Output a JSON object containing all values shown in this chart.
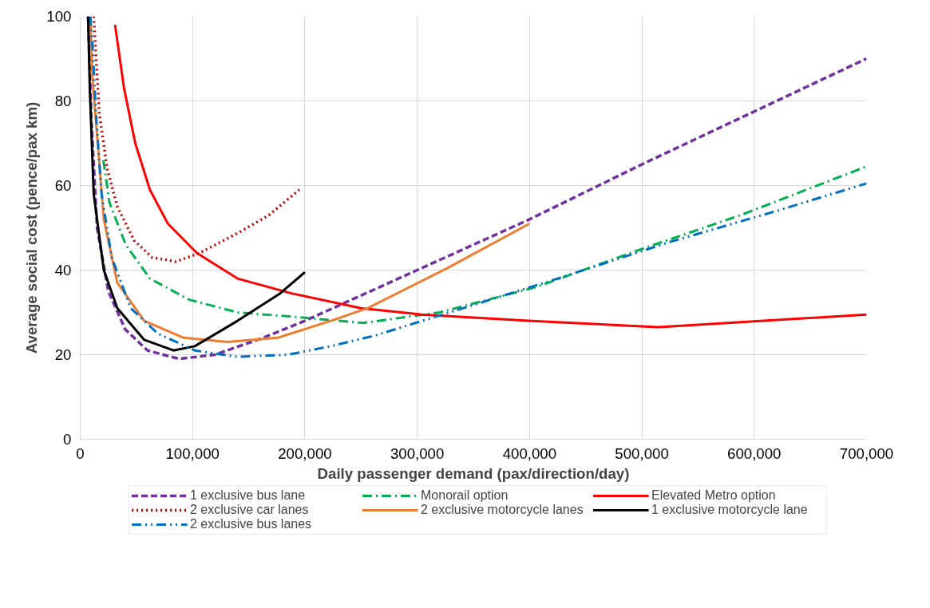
{
  "chart_data": {
    "type": "line",
    "xlabel": "Daily passenger demand (pax/direction/day)",
    "ylabel": "Average social cost (pence/pax km)",
    "xlim": [
      0,
      700000
    ],
    "ylim": [
      0,
      100
    ],
    "xticks": [
      0,
      {
        "value": 100000,
        "label": "100,000"
      },
      {
        "value": 200000,
        "label": "200,000"
      },
      {
        "value": 300000,
        "label": "300,000"
      },
      {
        "value": 400000,
        "label": "400,000"
      },
      {
        "value": 500000,
        "label": "500,000"
      },
      {
        "value": 600000,
        "label": "600,000"
      },
      {
        "value": 700000,
        "label": "700,000"
      }
    ],
    "yticks": [
      0,
      20,
      40,
      60,
      80,
      100
    ],
    "grid": true,
    "legend": "bottom",
    "series": [
      {
        "name": "1 exclusive bus lane",
        "color": "#7030a0",
        "line_style": "dashed",
        "x": [
          7000,
          10000,
          15000,
          25000,
          40000,
          60000,
          88000,
          120000,
          163000,
          200000,
          300000,
          400000,
          500000,
          600000,
          700000
        ],
        "values": [
          100,
          75,
          50,
          35,
          26,
          21,
          19,
          20,
          24,
          28,
          40,
          52,
          65,
          77.5,
          90
        ]
      },
      {
        "name": "Monorail option",
        "color": "#00b050",
        "line_style": "dashdot",
        "marker": "none",
        "x": [
          20600,
          26000,
          40500,
          62000,
          97000,
          140000,
          188000,
          252000,
          320000,
          406000,
          500000,
          588000,
          700000
        ],
        "values": [
          66,
          56,
          46,
          38,
          33,
          30,
          29,
          27.5,
          30,
          36,
          45,
          53,
          64.5
        ]
      },
      {
        "name": "Elevated Metro option",
        "color": "#ff0000",
        "line_style": "solid",
        "marker": "none",
        "x": [
          31000,
          39000,
          49000,
          62000,
          78000,
          104000,
          140000,
          188000,
          250000,
          304000,
          399000,
          515000,
          700000
        ],
        "values": [
          98,
          83,
          70,
          59,
          51,
          44,
          38,
          34.5,
          31,
          29.5,
          28,
          26.5,
          29.5
        ]
      },
      {
        "name": "2 exclusive car lanes",
        "color": "#c00000",
        "line_style": "dotted",
        "marker": "none",
        "x": [
          12000,
          17000,
          24000,
          33000,
          48000,
          64000,
          85000,
          106000,
          142000,
          168000,
          195000
        ],
        "values": [
          100,
          77,
          64,
          55,
          47,
          43,
          42,
          44,
          49,
          53,
          59
        ]
      },
      {
        "name": "2 exclusive motorcycle lanes",
        "color": "#ed7d31",
        "line_style": "solid",
        "x": [
          9000,
          11000,
          15600,
          21000,
          33000,
          57000,
          92000,
          131000,
          176000,
          223000,
          256000,
          327000,
          400000
        ],
        "values": [
          100,
          85,
          70,
          52,
          37,
          28,
          24,
          23,
          24,
          28,
          31,
          40.5,
          51
        ]
      },
      {
        "name": "1 exclusive motorcycle lane",
        "color": "#000000",
        "line_style": "solid",
        "x": [
          7000,
          8500,
          12000,
          21000,
          33000,
          57000,
          83000,
          102000,
          140000,
          178000,
          200000
        ],
        "values": [
          100,
          83,
          58,
          40,
          31,
          23.5,
          21,
          22,
          28,
          34.5,
          39.5
        ]
      },
      {
        "name": "2 exclusive bus lanes",
        "color": "#0070c0",
        "line_style": "dashdotdot",
        "x": [
          9000,
          11000,
          14000,
          19000,
          28000,
          45000,
          69000,
          102000,
          140000,
          185000,
          223000,
          262000,
          347000,
          425000,
          523000,
          620000,
          700000
        ],
        "values": [
          100,
          93,
          77,
          58,
          43,
          31,
          25,
          21,
          19.5,
          20,
          22,
          24.5,
          31.5,
          38,
          46.5,
          54,
          60.5
        ]
      }
    ]
  }
}
